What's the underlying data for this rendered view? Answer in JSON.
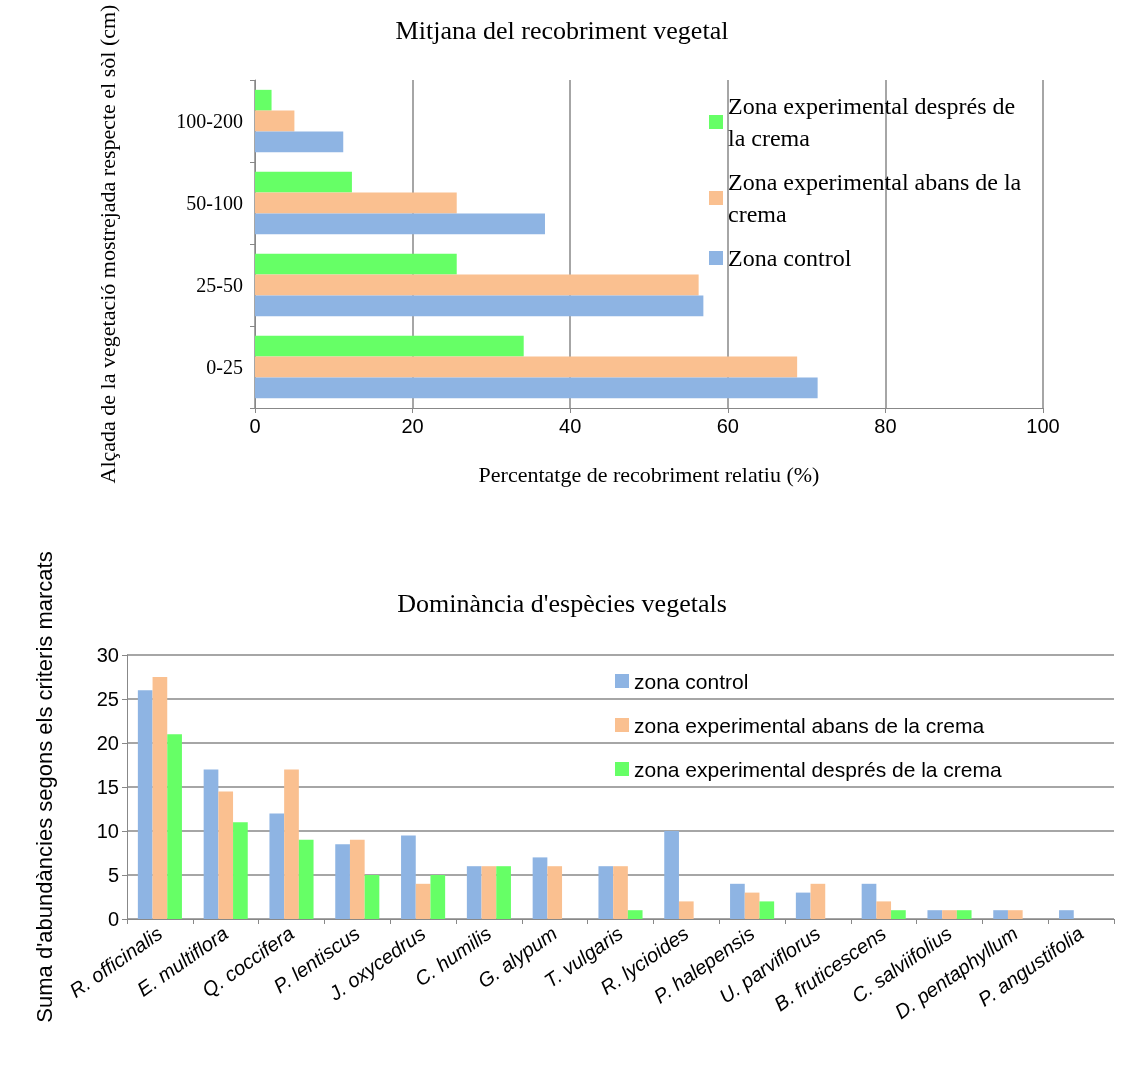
{
  "chart_data": [
    {
      "type": "bar",
      "orientation": "horizontal",
      "title": "Mitjana del recobriment vegetal",
      "xlabel": "Percentatge de recobriment relatiu (%)",
      "ylabel": "Alçada de la vegetació mostrejada respecte el sòl (cm)",
      "categories": [
        "100-200",
        "50-100",
        "25-50",
        "0-25"
      ],
      "series": [
        {
          "name": "Zona experimental després de la crema",
          "color": "#66ff66",
          "values": [
            2.1,
            12.3,
            25.6,
            34.1
          ]
        },
        {
          "name": "Zona experimental abans de la crema",
          "color": "#fac090",
          "values": [
            5.0,
            25.6,
            56.3,
            68.8
          ]
        },
        {
          "name": "Zona control",
          "color": "#8eb4e3",
          "values": [
            11.2,
            36.8,
            56.9,
            71.4
          ]
        }
      ],
      "xlim": [
        0,
        100
      ],
      "xticks": [
        0,
        20,
        40,
        60,
        80,
        100
      ],
      "grid": "x",
      "legend": "top right"
    },
    {
      "type": "bar",
      "title": "Dominància d'espècies vegetals",
      "ylabel": "Suma d'abundàncies segons els criteris marcats",
      "categories": [
        "R. officinalis",
        "E. multiflora",
        "Q. coccifera",
        "P. lentiscus",
        "J. oxycedrus",
        "C. humilis",
        "G. alypum",
        "T. vulgaris",
        "R. lycioides",
        "P. halepensis",
        "U. parviflorus",
        "B. fruticescens",
        "C. salviifolius",
        "D. pentaphyllum",
        "P. angustifolia"
      ],
      "series": [
        {
          "name": "zona control",
          "color": "#8eb4e3",
          "values": [
            26,
            17,
            12,
            8.5,
            9.5,
            6,
            7,
            6,
            10,
            4,
            3,
            4,
            1,
            1,
            1
          ]
        },
        {
          "name": "zona experimental abans de la crema",
          "color": "#fac090",
          "values": [
            27.5,
            14.5,
            17,
            9,
            4,
            6,
            6,
            6,
            2,
            3,
            4,
            2,
            1,
            1,
            0
          ]
        },
        {
          "name": "zona experimental després de la crema",
          "color": "#66ff66",
          "values": [
            21,
            11,
            9,
            5,
            5,
            6,
            0,
            1,
            0,
            2,
            0,
            1,
            1,
            0,
            0
          ]
        }
      ],
      "ylim": [
        0,
        30
      ],
      "yticks": [
        0,
        5,
        10,
        15,
        20,
        25,
        30
      ],
      "grid": "y",
      "legend": "top right"
    }
  ]
}
